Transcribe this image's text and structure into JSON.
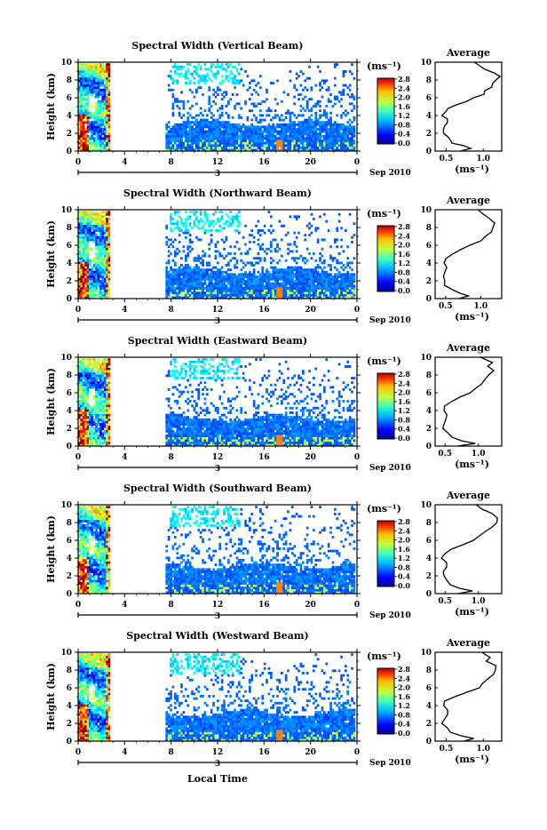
{
  "chart_data": {
    "type": "heatmap",
    "date_label": "Sep 2010",
    "day_label": "3",
    "xlabel": "Local Time",
    "ylabel": "Height (km)",
    "unit": "(ms⁻¹)",
    "average_title": "Average",
    "xticks": [
      "0",
      "4",
      "8",
      "12",
      "16",
      "20",
      "0"
    ],
    "yticks": [
      "0",
      "2",
      "4",
      "6",
      "8",
      "10"
    ],
    "colorbar_ticks": [
      "0.0",
      "0.4",
      "0.8",
      "1.2",
      "1.6",
      "2.0",
      "2.4",
      "2.8"
    ],
    "panels": [
      {
        "title": "Spectral Width (Vertical Beam)",
        "avg_xticks": [
          "0.5",
          "1.0"
        ],
        "avg_xrange": [
          0.35,
          1.25
        ],
        "avg_profile": [
          [
            0.72,
            0.0
          ],
          [
            0.86,
            0.3
          ],
          [
            0.73,
            0.6
          ],
          [
            0.6,
            0.9
          ],
          [
            0.55,
            1.2
          ],
          [
            0.5,
            1.6
          ],
          [
            0.46,
            2.0
          ],
          [
            0.45,
            2.4
          ],
          [
            0.5,
            2.8
          ],
          [
            0.5,
            3.2
          ],
          [
            0.5,
            3.6
          ],
          [
            0.45,
            4.0
          ],
          [
            0.47,
            4.4
          ],
          [
            0.55,
            4.8
          ],
          [
            0.65,
            5.2
          ],
          [
            0.78,
            5.6
          ],
          [
            0.9,
            6.0
          ],
          [
            1.0,
            6.4
          ],
          [
            1.05,
            6.8
          ],
          [
            1.1,
            7.2
          ],
          [
            1.15,
            7.6
          ],
          [
            1.18,
            8.0
          ],
          [
            1.2,
            8.4
          ],
          [
            1.12,
            8.8
          ],
          [
            1.05,
            9.2
          ],
          [
            0.98,
            9.6
          ],
          [
            0.9,
            10.0
          ]
        ]
      },
      {
        "title": "Spectral Width (Northward Beam)",
        "avg_xticks": [
          "0.5",
          "1.0"
        ],
        "avg_xrange": [
          0.35,
          1.3
        ],
        "avg_profile": [
          [
            0.7,
            0.0
          ],
          [
            0.85,
            0.3
          ],
          [
            0.7,
            0.6
          ],
          [
            0.58,
            1.0
          ],
          [
            0.5,
            1.5
          ],
          [
            0.47,
            2.0
          ],
          [
            0.47,
            2.5
          ],
          [
            0.5,
            3.0
          ],
          [
            0.52,
            3.5
          ],
          [
            0.5,
            4.0
          ],
          [
            0.5,
            4.5
          ],
          [
            0.58,
            5.0
          ],
          [
            0.7,
            5.5
          ],
          [
            0.85,
            6.0
          ],
          [
            0.98,
            6.5
          ],
          [
            1.08,
            7.0
          ],
          [
            1.15,
            7.5
          ],
          [
            1.18,
            8.0
          ],
          [
            1.2,
            8.5
          ],
          [
            1.15,
            9.0
          ],
          [
            1.05,
            9.5
          ],
          [
            0.95,
            10.0
          ]
        ]
      },
      {
        "title": "Spectral Width (Eastward Beam)",
        "avg_xticks": [
          "0.5",
          "1.0"
        ],
        "avg_xrange": [
          0.35,
          1.35
        ],
        "avg_profile": [
          [
            0.7,
            0.0
          ],
          [
            0.95,
            0.3
          ],
          [
            0.75,
            0.6
          ],
          [
            0.6,
            1.0
          ],
          [
            0.52,
            1.5
          ],
          [
            0.47,
            2.0
          ],
          [
            0.48,
            2.5
          ],
          [
            0.5,
            3.0
          ],
          [
            0.52,
            3.5
          ],
          [
            0.47,
            4.0
          ],
          [
            0.5,
            4.5
          ],
          [
            0.6,
            5.0
          ],
          [
            0.72,
            5.5
          ],
          [
            0.85,
            6.0
          ],
          [
            0.97,
            6.5
          ],
          [
            1.07,
            7.0
          ],
          [
            1.12,
            7.5
          ],
          [
            1.18,
            8.0
          ],
          [
            1.22,
            8.5
          ],
          [
            1.12,
            9.0
          ],
          [
            1.2,
            9.4
          ],
          [
            1.05,
            10.0
          ]
        ]
      },
      {
        "title": "Spectral Width (Southward Beam)",
        "avg_xticks": [
          "0.5",
          "1.0"
        ],
        "avg_xrange": [
          0.35,
          1.35
        ],
        "avg_profile": [
          [
            0.72,
            0.0
          ],
          [
            0.9,
            0.3
          ],
          [
            0.72,
            0.6
          ],
          [
            0.58,
            1.0
          ],
          [
            0.5,
            1.5
          ],
          [
            0.46,
            2.0
          ],
          [
            0.47,
            2.5
          ],
          [
            0.5,
            3.0
          ],
          [
            0.52,
            3.5
          ],
          [
            0.45,
            4.0
          ],
          [
            0.5,
            4.5
          ],
          [
            0.6,
            5.0
          ],
          [
            0.75,
            5.5
          ],
          [
            0.9,
            6.0
          ],
          [
            1.02,
            6.5
          ],
          [
            1.12,
            7.0
          ],
          [
            1.2,
            7.5
          ],
          [
            1.25,
            8.0
          ],
          [
            1.28,
            8.5
          ],
          [
            1.18,
            9.0
          ],
          [
            1.05,
            9.5
          ],
          [
            0.95,
            10.0
          ]
        ]
      },
      {
        "title": "Spectral Width (Westward Beam)",
        "avg_xticks": [
          "0.5",
          "1.0"
        ],
        "avg_xrange": [
          0.35,
          1.25
        ],
        "avg_profile": [
          [
            0.72,
            0.0
          ],
          [
            0.85,
            0.3
          ],
          [
            0.7,
            0.6
          ],
          [
            0.58,
            1.0
          ],
          [
            0.5,
            1.5
          ],
          [
            0.46,
            2.0
          ],
          [
            0.47,
            2.5
          ],
          [
            0.5,
            3.0
          ],
          [
            0.5,
            3.5
          ],
          [
            0.45,
            4.0
          ],
          [
            0.5,
            4.5
          ],
          [
            0.62,
            5.0
          ],
          [
            0.78,
            5.5
          ],
          [
            0.92,
            6.0
          ],
          [
            1.02,
            6.5
          ],
          [
            1.08,
            7.0
          ],
          [
            1.12,
            7.5
          ],
          [
            1.15,
            8.0
          ],
          [
            1.18,
            8.5
          ],
          [
            1.05,
            9.0
          ],
          [
            1.12,
            9.4
          ],
          [
            1.0,
            10.0
          ]
        ]
      }
    ]
  }
}
